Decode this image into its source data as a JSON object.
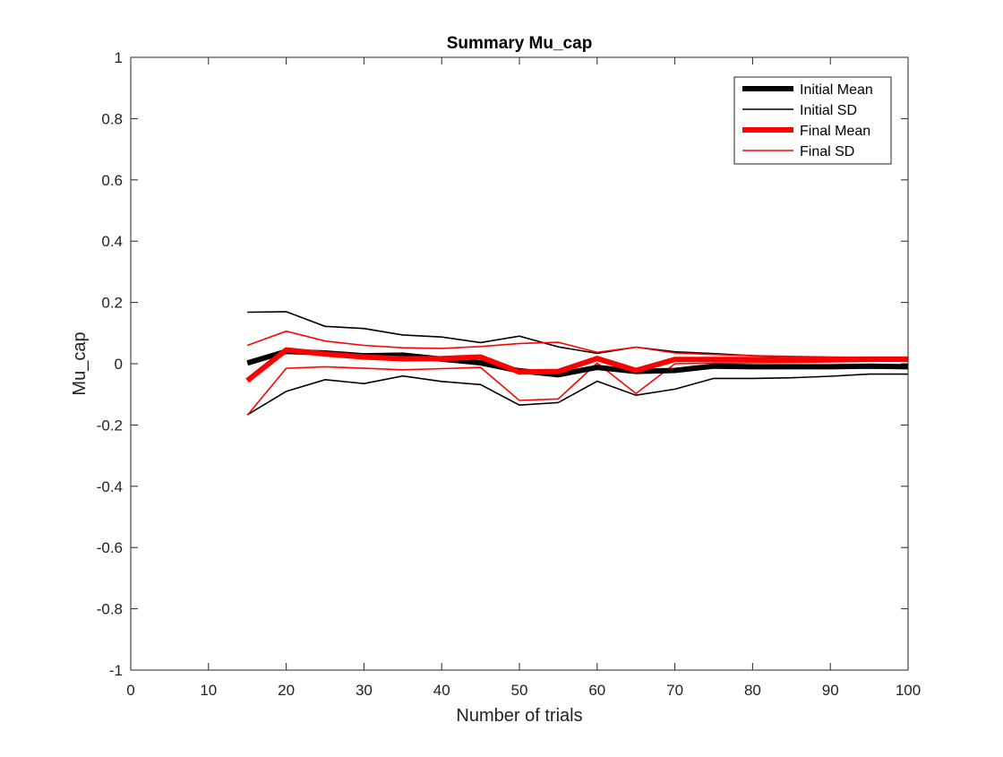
{
  "chart_data": {
    "type": "line",
    "title": "Summary Mu_cap",
    "xlabel": "Number of trials",
    "ylabel": "Mu_cap",
    "xlim": [
      0,
      100
    ],
    "ylim": [
      -1,
      1
    ],
    "xticks": [
      0,
      10,
      20,
      30,
      40,
      50,
      60,
      70,
      80,
      90,
      100
    ],
    "yticks": [
      -1,
      -0.8,
      -0.6,
      -0.4,
      -0.2,
      0,
      0.2,
      0.4,
      0.6,
      0.8,
      1
    ],
    "xtick_labels": [
      "0",
      "10",
      "20",
      "30",
      "40",
      "50",
      "60",
      "70",
      "80",
      "90",
      "100"
    ],
    "ytick_labels": [
      "-1",
      "-0.8",
      "-0.6",
      "-0.4",
      "-0.2",
      "0",
      "0.2",
      "0.4",
      "0.6",
      "0.8",
      "1"
    ],
    "grid": false,
    "legend_position": "top-right",
    "x": [
      15,
      20,
      25,
      30,
      35,
      40,
      45,
      50,
      55,
      60,
      65,
      70,
      75,
      80,
      85,
      90,
      95,
      100
    ],
    "series": [
      {
        "name": "Initial SD",
        "role": "upper",
        "color": "#000000",
        "style": "thin",
        "values": [
          0.168,
          0.17,
          0.122,
          0.115,
          0.094,
          0.087,
          0.069,
          0.09,
          0.055,
          0.034,
          0.054,
          0.039,
          0.033,
          0.026,
          0.022,
          0.018,
          0.016,
          0.013
        ]
      },
      {
        "name": "Initial SD",
        "role": "lower",
        "color": "#000000",
        "style": "thin",
        "values": [
          -0.167,
          -0.09,
          -0.052,
          -0.065,
          -0.04,
          -0.058,
          -0.068,
          -0.135,
          -0.127,
          -0.057,
          -0.103,
          -0.083,
          -0.048,
          -0.048,
          -0.046,
          -0.041,
          -0.034,
          -0.034
        ]
      },
      {
        "name": "Final SD",
        "role": "upper",
        "color": "#ff0000",
        "style": "thin",
        "values": [
          0.06,
          0.106,
          0.074,
          0.06,
          0.052,
          0.05,
          0.056,
          0.066,
          0.07,
          0.037,
          0.054,
          0.035,
          0.03,
          0.026,
          0.024,
          0.022,
          0.02,
          0.02
        ]
      },
      {
        "name": "Final SD",
        "role": "lower",
        "color": "#ff0000",
        "style": "thin",
        "values": [
          -0.168,
          -0.015,
          -0.01,
          -0.015,
          -0.02,
          -0.016,
          -0.012,
          -0.12,
          -0.115,
          0.002,
          -0.097,
          0.0,
          0.002,
          0.003,
          0.004,
          0.006,
          0.008,
          0.008
        ]
      },
      {
        "name": "Initial Mean",
        "color": "#000000",
        "style": "thick",
        "values": [
          0.002,
          0.04,
          0.035,
          0.026,
          0.028,
          0.015,
          0.003,
          -0.023,
          -0.036,
          -0.012,
          -0.025,
          -0.022,
          -0.008,
          -0.01,
          -0.01,
          -0.01,
          -0.008,
          -0.01
        ]
      },
      {
        "name": "Final Mean",
        "color": "#ff0000",
        "style": "thick",
        "values": [
          -0.055,
          0.045,
          0.032,
          0.022,
          0.016,
          0.017,
          0.022,
          -0.027,
          -0.025,
          0.017,
          -0.022,
          0.014,
          0.014,
          0.014,
          0.014,
          0.014,
          0.015,
          0.015
        ]
      }
    ],
    "legend": [
      {
        "label": "Initial Mean",
        "color": "#000000",
        "style": "thick"
      },
      {
        "label": "Initial SD",
        "color": "#000000",
        "style": "thin"
      },
      {
        "label": "Final Mean",
        "color": "#ff0000",
        "style": "thick"
      },
      {
        "label": "Final SD",
        "color": "#ff0000",
        "style": "thin"
      }
    ]
  }
}
